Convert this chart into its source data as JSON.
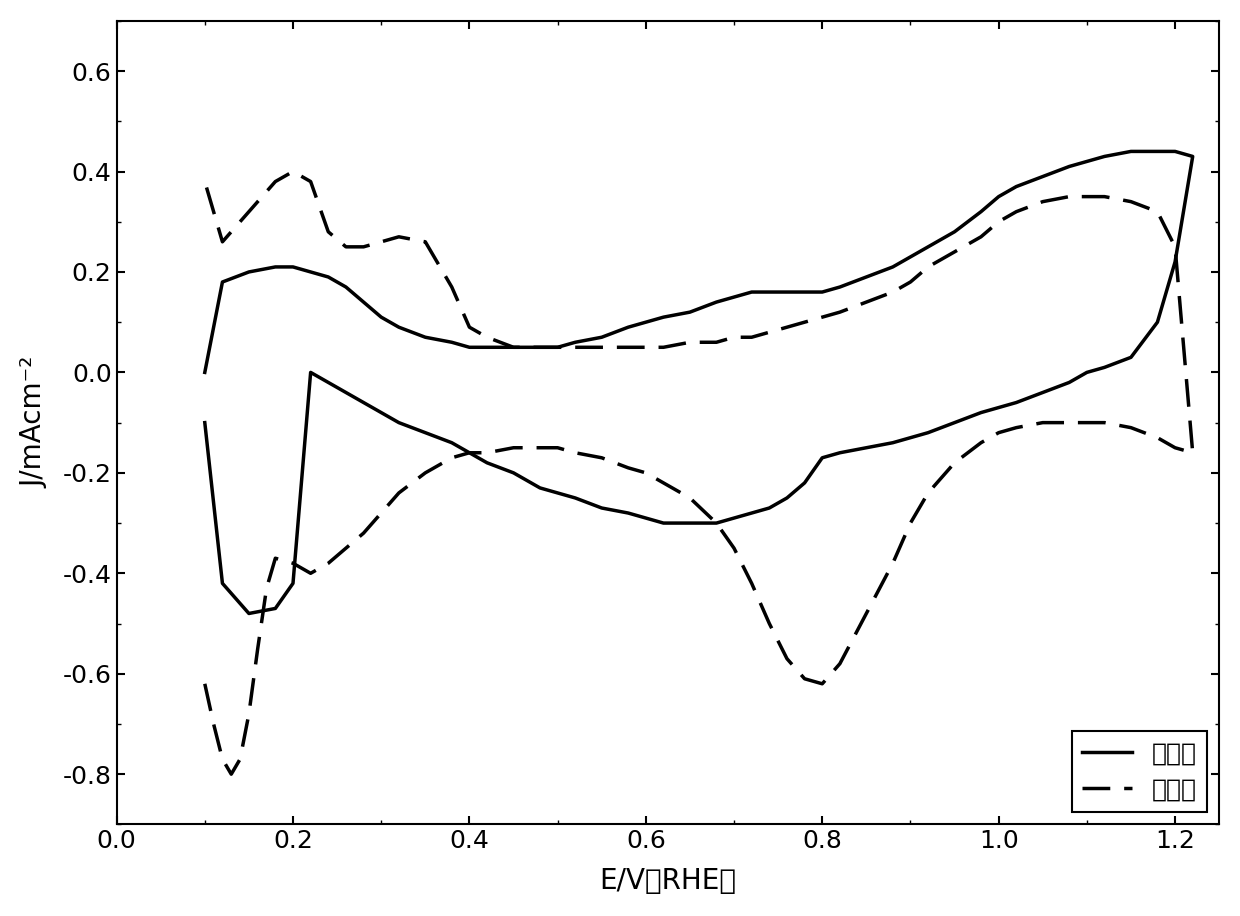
{
  "title": "",
  "xlabel": "E/V（RHE）",
  "ylabel": "J/mAcm⁻²",
  "xlim": [
    0.0,
    1.25
  ],
  "ylim": [
    -0.9,
    0.7
  ],
  "xticks": [
    0.0,
    0.2,
    0.4,
    0.6,
    0.8,
    1.0,
    1.2
  ],
  "yticks": [
    -0.8,
    -0.6,
    -0.4,
    -0.2,
    0.0,
    0.2,
    0.4,
    0.6
  ],
  "legend_solid": "对比例",
  "legend_dashed": "实施例",
  "line_color": "#000000",
  "linewidth": 2.5,
  "background_color": "#ffffff",
  "solid_x": [
    0.1,
    0.12,
    0.15,
    0.18,
    0.2,
    0.22,
    0.24,
    0.26,
    0.28,
    0.3,
    0.32,
    0.35,
    0.38,
    0.4,
    0.42,
    0.45,
    0.48,
    0.5,
    0.52,
    0.55,
    0.58,
    0.6,
    0.62,
    0.65,
    0.68,
    0.7,
    0.72,
    0.74,
    0.76,
    0.78,
    0.8,
    0.82,
    0.85,
    0.88,
    0.9,
    0.92,
    0.95,
    0.98,
    1.0,
    1.02,
    1.05,
    1.08,
    1.1,
    1.12,
    1.15,
    1.18,
    1.2,
    1.22,
    1.22,
    1.2,
    1.18,
    1.15,
    1.12,
    1.1,
    1.08,
    1.05,
    1.02,
    1.0,
    0.98,
    0.95,
    0.92,
    0.9,
    0.88,
    0.85,
    0.82,
    0.8,
    0.78,
    0.76,
    0.74,
    0.72,
    0.7,
    0.68,
    0.65,
    0.62,
    0.6,
    0.58,
    0.55,
    0.52,
    0.5,
    0.48,
    0.45,
    0.42,
    0.4,
    0.38,
    0.35,
    0.32,
    0.3,
    0.28,
    0.26,
    0.24,
    0.22,
    0.2,
    0.18,
    0.15,
    0.12,
    0.1
  ],
  "solid_y": [
    0.0,
    0.18,
    0.2,
    0.21,
    0.21,
    0.2,
    0.19,
    0.17,
    0.14,
    0.11,
    0.09,
    0.07,
    0.06,
    0.05,
    0.05,
    0.05,
    0.05,
    0.05,
    0.06,
    0.07,
    0.09,
    0.1,
    0.11,
    0.12,
    0.14,
    0.15,
    0.16,
    0.16,
    0.16,
    0.16,
    0.16,
    0.17,
    0.19,
    0.21,
    0.23,
    0.25,
    0.28,
    0.32,
    0.35,
    0.37,
    0.39,
    0.41,
    0.42,
    0.43,
    0.44,
    0.44,
    0.44,
    0.43,
    0.43,
    0.22,
    0.1,
    0.03,
    0.01,
    0.0,
    -0.02,
    -0.04,
    -0.06,
    -0.07,
    -0.08,
    -0.1,
    -0.12,
    -0.13,
    -0.14,
    -0.15,
    -0.16,
    -0.17,
    -0.22,
    -0.25,
    -0.27,
    -0.28,
    -0.29,
    -0.3,
    -0.3,
    -0.3,
    -0.29,
    -0.28,
    -0.27,
    -0.25,
    -0.24,
    -0.23,
    -0.2,
    -0.18,
    -0.16,
    -0.14,
    -0.12,
    -0.1,
    -0.08,
    -0.06,
    -0.04,
    -0.02,
    0.0,
    -0.42,
    -0.47,
    -0.48,
    -0.42,
    -0.1
  ],
  "dashed_x": [
    0.1,
    0.11,
    0.12,
    0.13,
    0.14,
    0.15,
    0.16,
    0.17,
    0.18,
    0.2,
    0.22,
    0.24,
    0.26,
    0.28,
    0.3,
    0.32,
    0.35,
    0.38,
    0.4,
    0.42,
    0.45,
    0.48,
    0.5,
    0.52,
    0.55,
    0.58,
    0.6,
    0.62,
    0.65,
    0.68,
    0.7,
    0.72,
    0.74,
    0.76,
    0.78,
    0.8,
    0.82,
    0.85,
    0.88,
    0.9,
    0.92,
    0.95,
    0.98,
    1.0,
    1.02,
    1.05,
    1.08,
    1.1,
    1.12,
    1.15,
    1.18,
    1.2,
    1.22,
    1.22,
    1.2,
    1.18,
    1.15,
    1.12,
    1.1,
    1.08,
    1.05,
    1.02,
    1.0,
    0.98,
    0.95,
    0.92,
    0.9,
    0.88,
    0.85,
    0.82,
    0.8,
    0.78,
    0.76,
    0.74,
    0.72,
    0.7,
    0.68,
    0.65,
    0.62,
    0.6,
    0.58,
    0.55,
    0.52,
    0.5,
    0.48,
    0.45,
    0.42,
    0.4,
    0.38,
    0.35,
    0.32,
    0.3,
    0.28,
    0.26,
    0.24,
    0.22,
    0.2,
    0.18,
    0.15,
    0.12,
    0.1
  ],
  "dashed_y": [
    -0.62,
    -0.7,
    -0.77,
    -0.8,
    -0.77,
    -0.68,
    -0.55,
    -0.43,
    -0.37,
    -0.38,
    -0.4,
    -0.38,
    -0.35,
    -0.32,
    -0.28,
    -0.24,
    -0.2,
    -0.17,
    -0.16,
    -0.16,
    -0.15,
    -0.15,
    -0.15,
    -0.16,
    -0.17,
    -0.19,
    -0.2,
    -0.22,
    -0.25,
    -0.3,
    -0.35,
    -0.42,
    -0.5,
    -0.57,
    -0.61,
    -0.62,
    -0.58,
    -0.48,
    -0.38,
    -0.3,
    -0.24,
    -0.18,
    -0.14,
    -0.12,
    -0.11,
    -0.1,
    -0.1,
    -0.1,
    -0.1,
    -0.11,
    -0.13,
    -0.15,
    -0.16,
    -0.16,
    0.25,
    0.32,
    0.34,
    0.35,
    0.35,
    0.35,
    0.34,
    0.32,
    0.3,
    0.27,
    0.24,
    0.21,
    0.18,
    0.16,
    0.14,
    0.12,
    0.11,
    0.1,
    0.09,
    0.08,
    0.07,
    0.07,
    0.06,
    0.06,
    0.05,
    0.05,
    0.05,
    0.05,
    0.05,
    0.05,
    0.05,
    0.05,
    0.07,
    0.09,
    0.17,
    0.26,
    0.27,
    0.26,
    0.25,
    0.25,
    0.28,
    0.38,
    0.4,
    0.38,
    0.32,
    0.26,
    0.38
  ]
}
